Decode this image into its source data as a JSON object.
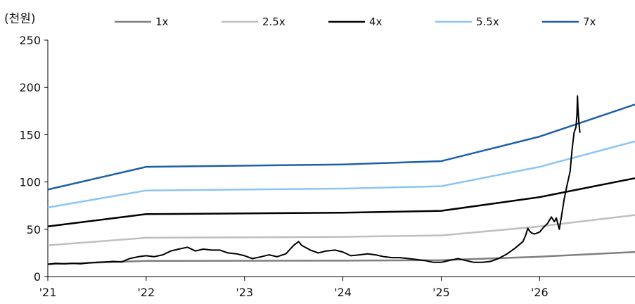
{
  "chart_data": {
    "type": "line",
    "unit_label": "(천원)",
    "ylim": [
      0,
      250
    ],
    "yticks": [
      "0",
      "50",
      "100",
      "150",
      "200",
      "250"
    ],
    "xlim": [
      2021.0,
      2026.97
    ],
    "xticks": [
      {
        "label": "'21",
        "x": 2021.0
      },
      {
        "label": "'22",
        "x": 2022.0
      },
      {
        "label": "'23",
        "x": 2023.0
      },
      {
        "label": "'24",
        "x": 2024.0
      },
      {
        "label": "'25",
        "x": 2025.0
      },
      {
        "label": "'26",
        "x": 2026.0
      }
    ],
    "grid": false,
    "legend_position": "top",
    "band_x": [
      2021.0,
      2022.0,
      2024.0,
      2025.0,
      2026.0,
      2026.97
    ],
    "series": [
      {
        "name": "1x",
        "color": "#7f7f7f",
        "values": [
          13,
          16.5,
          16.8,
          17.3,
          21,
          26
        ]
      },
      {
        "name": "2.5x",
        "color": "#bfbfbf",
        "values": [
          33,
          41,
          42,
          43.5,
          53,
          65
        ]
      },
      {
        "name": "4x",
        "color": "#000000",
        "values": [
          53,
          66,
          67.5,
          69.5,
          84,
          104
        ]
      },
      {
        "name": "5.5x",
        "color": "#8ec4f2",
        "values": [
          73,
          91,
          93,
          95.5,
          116,
          143
        ]
      },
      {
        "name": "7x",
        "color": "#1f5fa6",
        "values": [
          92,
          116,
          118.5,
          122,
          148,
          182
        ]
      }
    ],
    "price": {
      "color": "#000000",
      "points": [
        [
          2021.0,
          13
        ],
        [
          2021.08,
          14
        ],
        [
          2021.17,
          13.5
        ],
        [
          2021.25,
          14
        ],
        [
          2021.33,
          13.5
        ],
        [
          2021.42,
          14.5
        ],
        [
          2021.5,
          15
        ],
        [
          2021.58,
          15.5
        ],
        [
          2021.67,
          16
        ],
        [
          2021.75,
          15.5
        ],
        [
          2021.83,
          19
        ],
        [
          2021.92,
          21
        ],
        [
          2022.0,
          22
        ],
        [
          2022.08,
          21
        ],
        [
          2022.17,
          23
        ],
        [
          2022.25,
          27
        ],
        [
          2022.33,
          29
        ],
        [
          2022.42,
          31
        ],
        [
          2022.5,
          27
        ],
        [
          2022.58,
          29
        ],
        [
          2022.67,
          28
        ],
        [
          2022.75,
          28
        ],
        [
          2022.83,
          25
        ],
        [
          2022.92,
          24
        ],
        [
          2023.0,
          22
        ],
        [
          2023.08,
          19
        ],
        [
          2023.17,
          21
        ],
        [
          2023.25,
          23
        ],
        [
          2023.33,
          21
        ],
        [
          2023.42,
          24
        ],
        [
          2023.5,
          33
        ],
        [
          2023.55,
          37
        ],
        [
          2023.58,
          33
        ],
        [
          2023.67,
          28
        ],
        [
          2023.75,
          25
        ],
        [
          2023.83,
          27
        ],
        [
          2023.92,
          28
        ],
        [
          2024.0,
          26
        ],
        [
          2024.08,
          22
        ],
        [
          2024.17,
          23
        ],
        [
          2024.25,
          24
        ],
        [
          2024.33,
          23
        ],
        [
          2024.42,
          21
        ],
        [
          2024.5,
          20
        ],
        [
          2024.58,
          20
        ],
        [
          2024.67,
          19
        ],
        [
          2024.75,
          18
        ],
        [
          2024.83,
          17
        ],
        [
          2024.92,
          15
        ],
        [
          2025.0,
          15
        ],
        [
          2025.08,
          17
        ],
        [
          2025.17,
          19
        ],
        [
          2025.25,
          17
        ],
        [
          2025.33,
          15
        ],
        [
          2025.42,
          15
        ],
        [
          2025.5,
          16
        ],
        [
          2025.58,
          19
        ],
        [
          2025.67,
          24
        ],
        [
          2025.75,
          30
        ],
        [
          2025.83,
          37
        ],
        [
          2025.86,
          44
        ],
        [
          2025.88,
          51
        ],
        [
          2025.9,
          48
        ],
        [
          2025.92,
          46
        ],
        [
          2025.95,
          45
        ],
        [
          2026.0,
          47
        ],
        [
          2026.04,
          52
        ],
        [
          2026.08,
          56
        ],
        [
          2026.12,
          63
        ],
        [
          2026.15,
          58
        ],
        [
          2026.17,
          62
        ],
        [
          2026.2,
          50
        ],
        [
          2026.22,
          62
        ],
        [
          2026.25,
          82
        ],
        [
          2026.28,
          97
        ],
        [
          2026.31,
          111
        ],
        [
          2026.33,
          134
        ],
        [
          2026.35,
          152
        ],
        [
          2026.37,
          158
        ],
        [
          2026.38,
          172
        ],
        [
          2026.385,
          191
        ],
        [
          2026.39,
          178
        ],
        [
          2026.4,
          162
        ],
        [
          2026.41,
          152
        ]
      ]
    },
    "legend": [
      {
        "name": "1x",
        "color": "#7f7f7f"
      },
      {
        "name": "2.5x",
        "color": "#bfbfbf"
      },
      {
        "name": "4x",
        "color": "#000000"
      },
      {
        "name": "5.5x",
        "color": "#8ec4f2"
      },
      {
        "name": "7x",
        "color": "#1f5fa6"
      }
    ]
  }
}
